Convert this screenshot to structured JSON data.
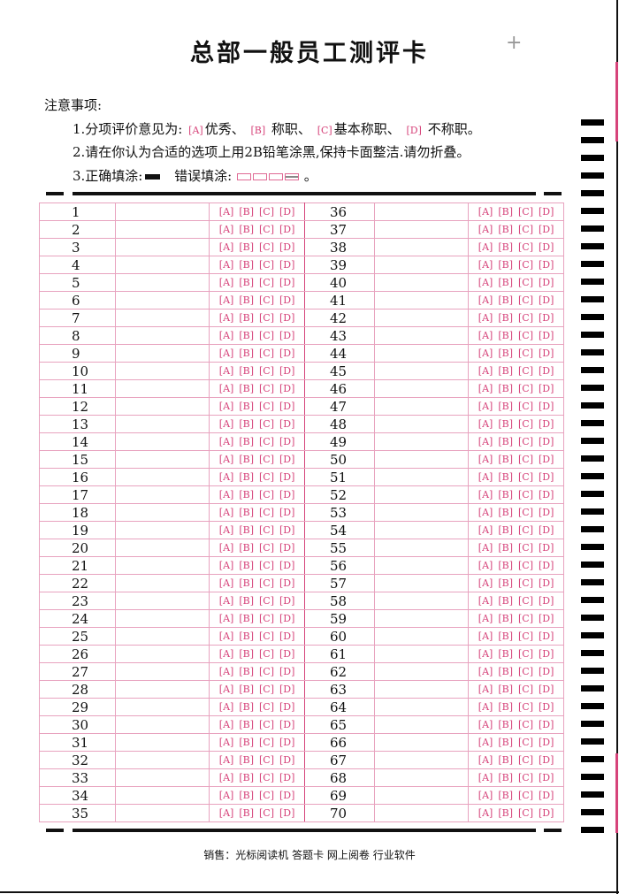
{
  "title": "总部一般员工测评卡",
  "notes": {
    "heading": "注意事项:",
    "line1": {
      "prefix": "1.分项评价意见为:",
      "a": "A",
      "a_text": "优秀、",
      "b": "B",
      "b_text": " 称职、",
      "c": "C",
      "c_text": "基本称职、",
      "d": "D",
      "d_text": " 不称职。"
    },
    "line2": "2.请在你认为合适的选项上用2B铅笔涂黑,保持卡面整洁.请勿折叠。",
    "line3": {
      "correct": "3.正确填涂:",
      "wrong": "错误填涂:",
      "end": "。"
    }
  },
  "options": [
    "A",
    "B",
    "C",
    "D"
  ],
  "rows": [
    [
      "1",
      "36"
    ],
    [
      "2",
      "37"
    ],
    [
      "3",
      "38"
    ],
    [
      "4",
      "39"
    ],
    [
      "5",
      "40"
    ],
    [
      "6",
      "41"
    ],
    [
      "7",
      "42"
    ],
    [
      "8",
      "43"
    ],
    [
      "9",
      "44"
    ],
    [
      "10",
      "45"
    ],
    [
      "11",
      "46"
    ],
    [
      "12",
      "47"
    ],
    [
      "13",
      "48"
    ],
    [
      "14",
      "49"
    ],
    [
      "15",
      "50"
    ],
    [
      "16",
      "51"
    ],
    [
      "17",
      "52"
    ],
    [
      "18",
      "53"
    ],
    [
      "19",
      "54"
    ],
    [
      "20",
      "55"
    ],
    [
      "21",
      "56"
    ],
    [
      "22",
      "57"
    ],
    [
      "23",
      "58"
    ],
    [
      "24",
      "59"
    ],
    [
      "25",
      "60"
    ],
    [
      "26",
      "61"
    ],
    [
      "27",
      "62"
    ],
    [
      "28",
      "63"
    ],
    [
      "29",
      "64"
    ],
    [
      "30",
      "65"
    ],
    [
      "31",
      "66"
    ],
    [
      "32",
      "67"
    ],
    [
      "33",
      "68"
    ],
    [
      "34",
      "69"
    ],
    [
      "35",
      "70"
    ]
  ],
  "footer": "销售：光标阅读机 答题卡 网上阅卷 行业软件",
  "colors": {
    "accent": "#d6437a",
    "grid": "#e8a3bf",
    "ink": "#111111"
  }
}
